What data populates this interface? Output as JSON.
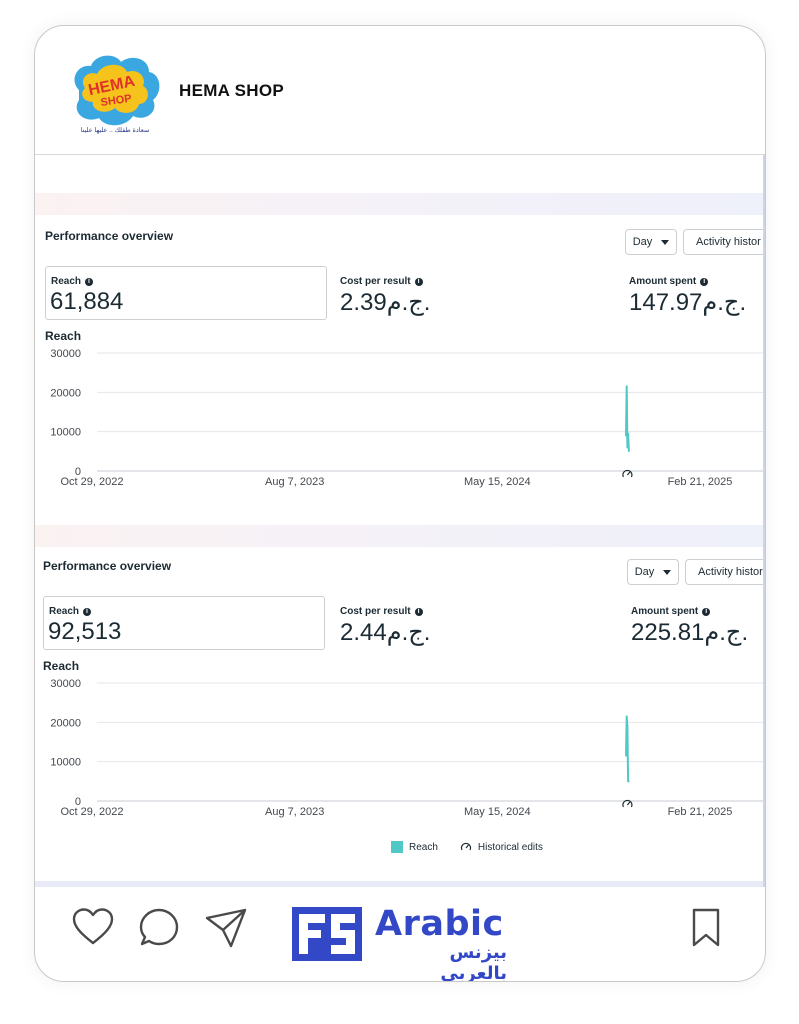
{
  "post": {
    "shop_name": "HEMA SHOP",
    "logo_text_top": "HEMA",
    "logo_text_bottom": "SHOP",
    "logo_tagline": "سعادة طفلك .. عليها علينا"
  },
  "panels": [
    {
      "title": "Performance overview",
      "day_label": "Day",
      "activity_label": "Activity histor",
      "reach_label": "Reach",
      "reach_value": "61,884",
      "cost_label": "Cost per result",
      "cost_value": "2.39ج.م.",
      "spent_label": "Amount spent",
      "spent_value": "147.97ج.م.",
      "chart_title": "Reach"
    },
    {
      "title": "Performance overview",
      "day_label": "Day",
      "activity_label": "Activity histor",
      "reach_label": "Reach",
      "reach_value": "92,513",
      "cost_label": "Cost per result",
      "cost_value": "2.44ج.م.",
      "spent_label": "Amount spent",
      "spent_value": "225.81ج.م.",
      "chart_title": "Reach",
      "legend": {
        "reach": "Reach",
        "historical": "Historical edits"
      }
    }
  ],
  "chart_data": [
    {
      "type": "line",
      "title": "Reach",
      "x_ticks": [
        "Oct 29, 2022",
        "Aug 7, 2023",
        "May 15, 2024",
        "Feb 21, 2025"
      ],
      "y_ticks": [
        0,
        10000,
        20000,
        30000
      ],
      "ylim": [
        0,
        30000
      ],
      "series": [
        {
          "name": "Reach",
          "color": "#4fc9c6",
          "x": [
            "2024-11-10",
            "2024-11-11",
            "2024-11-12",
            "2024-11-13",
            "2024-11-14"
          ],
          "values": [
            9000,
            21500,
            6000,
            9500,
            5000
          ]
        }
      ],
      "historical_edit_x": "2024-11-12"
    },
    {
      "type": "line",
      "title": "Reach",
      "x_ticks": [
        "Oct 29, 2022",
        "Aug 7, 2023",
        "May 15, 2024",
        "Feb 21, 2025"
      ],
      "y_ticks": [
        0,
        10000,
        20000,
        30000
      ],
      "ylim": [
        0,
        30000
      ],
      "series": [
        {
          "name": "Reach",
          "color": "#4fc9c6",
          "x": [
            "2024-11-10",
            "2024-11-11",
            "2024-11-12",
            "2024-11-13",
            "2024-11-14"
          ],
          "values": [
            11500,
            21500,
            19000,
            5000,
            5000
          ]
        }
      ],
      "historical_edit_x": "2024-11-12",
      "legend": [
        "Reach",
        "Historical edits"
      ]
    }
  ],
  "footer": {
    "brand_word": "Arabic",
    "brand_arabic": "بيزنس بالعربي"
  },
  "icons": {
    "like": "heart-icon",
    "comment": "comment-icon",
    "share": "send-icon",
    "save": "bookmark-icon"
  }
}
